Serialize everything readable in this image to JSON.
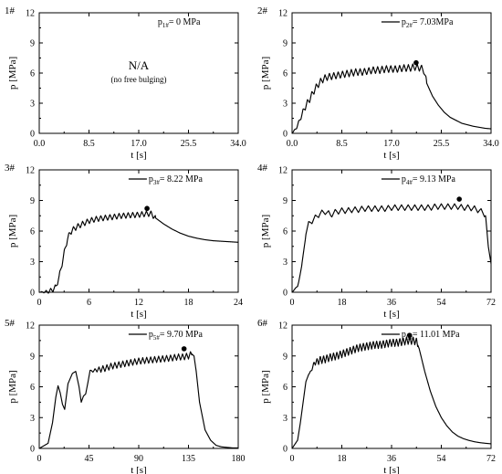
{
  "chart_data": [
    {
      "type": "line",
      "panel_label": "1#",
      "xlabel": "t [s]",
      "ylabel": "p [MPa]",
      "xlim": [
        0,
        34
      ],
      "ylim": [
        0,
        12
      ],
      "xticks": [
        "0.0",
        "8.5",
        "17.0",
        "25.5",
        "34.0"
      ],
      "yticks": [
        "0",
        "3",
        "6",
        "9",
        "12"
      ],
      "legend": {
        "symbol": "p",
        "sub": "1#",
        "value": "= 0 MPa",
        "line": false
      },
      "na_text": "N/A",
      "na_note": "(no free bulging)",
      "series": [],
      "peak": null
    },
    {
      "type": "line",
      "panel_label": "2#",
      "xlabel": "t [s]",
      "ylabel": "p [MPa]",
      "xlim": [
        0,
        34
      ],
      "ylim": [
        0,
        12
      ],
      "xticks": [
        "0.0",
        "8.5",
        "17.0",
        "25.5",
        "34.0"
      ],
      "yticks": [
        "0",
        "3",
        "6",
        "9",
        "12"
      ],
      "legend": {
        "symbol": "p",
        "sub": "2#",
        "value": "= 7.03MPa",
        "line": true
      },
      "series": [
        {
          "x": [
            0,
            0.8,
            1.5,
            2.2,
            3,
            3.8,
            4.5,
            5.3,
            6,
            7,
            8,
            9,
            10,
            11,
            12,
            13,
            14,
            15,
            16,
            17,
            18,
            19,
            20,
            21,
            22,
            22.5,
            23,
            24,
            25,
            26,
            27,
            28,
            29,
            30,
            31,
            32,
            33,
            34
          ],
          "y": [
            0,
            0.6,
            1.6,
            2.6,
            3.4,
            4.3,
            4.9,
            5.4,
            5.6,
            5.7,
            5.8,
            5.9,
            6.0,
            6.1,
            6.1,
            6.2,
            6.3,
            6.3,
            6.4,
            6.4,
            6.4,
            6.5,
            6.5,
            6.6,
            6.5,
            6.3,
            5.0,
            3.7,
            2.8,
            2.1,
            1.6,
            1.3,
            1.0,
            0.85,
            0.7,
            0.6,
            0.5,
            0.45
          ],
          "osc_end": 23,
          "osc_amp": 0.7,
          "osc_period": 0.75
        }
      ],
      "peak": {
        "x": 21.2,
        "y": 7.03
      }
    },
    {
      "type": "line",
      "panel_label": "3#",
      "xlabel": "t [s]",
      "ylabel": "p [MPa]",
      "xlim": [
        0,
        24
      ],
      "ylim": [
        0,
        12
      ],
      "xticks": [
        "0",
        "6",
        "12",
        "18",
        "24"
      ],
      "yticks": [
        "0",
        "3",
        "6",
        "9",
        "12"
      ],
      "legend": {
        "symbol": "p",
        "sub": "3#",
        "value": "= 8.22 MPa",
        "line": true
      },
      "series": [
        {
          "x": [
            0,
            1,
            1.5,
            2,
            2.4,
            2.8,
            3.1,
            3.4,
            3.7,
            4,
            4.5,
            5,
            5.5,
            6,
            7,
            8,
            9,
            10,
            11,
            12,
            13,
            13.5,
            14,
            15,
            16,
            17,
            18,
            19,
            20,
            21,
            22,
            23,
            24
          ],
          "y": [
            0,
            0.05,
            0.2,
            0.5,
            1.5,
            3.0,
            4.2,
            5.2,
            5.8,
            6.1,
            6.4,
            6.6,
            6.8,
            7.0,
            7.2,
            7.3,
            7.4,
            7.5,
            7.55,
            7.6,
            7.7,
            7.7,
            7.3,
            6.7,
            6.2,
            5.8,
            5.5,
            5.3,
            5.15,
            5.05,
            5.0,
            4.95,
            4.9
          ],
          "osc_end": 14,
          "osc_amp": 0.55,
          "osc_period": 0.55
        }
      ],
      "peak": {
        "x": 13.0,
        "y": 8.22
      }
    },
    {
      "type": "line",
      "panel_label": "4#",
      "xlabel": "t [s]",
      "ylabel": "p [MPa]",
      "xlim": [
        0,
        72
      ],
      "ylim": [
        0,
        12
      ],
      "xticks": [
        "0",
        "18",
        "36",
        "54",
        "72"
      ],
      "yticks": [
        "0",
        "3",
        "6",
        "9",
        "12"
      ],
      "legend": {
        "symbol": "p",
        "sub": "4#",
        "value": "= 9.13 MPa",
        "line": true
      },
      "series": [
        {
          "x": [
            0,
            2,
            3.5,
            5,
            6,
            8,
            10,
            12,
            14,
            16,
            18,
            20,
            22,
            24,
            26,
            28,
            30,
            32,
            34,
            36,
            38,
            40,
            42,
            44,
            46,
            48,
            50,
            52,
            54,
            56,
            58,
            60,
            62,
            64,
            66,
            68,
            70,
            71,
            72
          ],
          "y": [
            0,
            0.6,
            2.5,
            5.8,
            6.7,
            7.2,
            7.7,
            7.9,
            7.6,
            7.9,
            8.0,
            8.0,
            8.1,
            8.1,
            8.2,
            8.2,
            8.2,
            8.2,
            8.2,
            8.3,
            8.3,
            8.3,
            8.3,
            8.3,
            8.3,
            8.3,
            8.3,
            8.4,
            8.4,
            8.4,
            8.4,
            8.4,
            8.3,
            8.3,
            8.2,
            8.0,
            7.6,
            4.5,
            2.8
          ],
          "osc_end": 70,
          "osc_amp": 0.55,
          "osc_period": 2.4
        }
      ],
      "peak": {
        "x": 60.5,
        "y": 9.13
      }
    },
    {
      "type": "line",
      "panel_label": "5#",
      "xlabel": "t [s]",
      "ylabel": "p [MPa]",
      "xlim": [
        0,
        180
      ],
      "ylim": [
        0,
        12
      ],
      "xticks": [
        "0",
        "45",
        "90",
        "135",
        "180"
      ],
      "yticks": [
        "0",
        "3",
        "6",
        "9",
        "12"
      ],
      "legend": {
        "symbol": "p",
        "sub": "5#",
        "value": "= 9.70 MPa",
        "line": true
      },
      "series": [
        {
          "x": [
            0,
            8,
            12,
            15,
            17,
            19,
            21,
            23,
            26,
            30,
            33,
            36,
            38,
            40,
            42,
            44,
            46,
            48,
            50,
            55,
            60,
            65,
            70,
            80,
            90,
            100,
            110,
            120,
            125,
            130,
            135,
            138,
            140,
            142,
            145,
            150,
            155,
            160,
            165,
            170,
            175,
            180
          ],
          "y": [
            0,
            0.5,
            2.5,
            5.0,
            6.1,
            5.4,
            4.3,
            3.8,
            6.3,
            7.3,
            7.5,
            6.0,
            4.5,
            5.1,
            5.3,
            6.4,
            7.6,
            7.5,
            7.6,
            7.7,
            7.8,
            8.0,
            8.1,
            8.3,
            8.5,
            8.6,
            8.7,
            8.8,
            8.9,
            8.9,
            9.0,
            9.2,
            9.0,
            7.5,
            4.5,
            1.8,
            0.8,
            0.3,
            0.15,
            0.1,
            0.05,
            0.05
          ],
          "osc_start": 45,
          "osc_end": 138,
          "osc_amp": 0.6,
          "osc_period": 3.6
        }
      ],
      "peak": {
        "x": 131,
        "y": 9.7
      }
    },
    {
      "type": "line",
      "panel_label": "6#",
      "xlabel": "t [s]",
      "ylabel": "p [MPa]",
      "xlim": [
        0,
        72
      ],
      "ylim": [
        0,
        12
      ],
      "xticks": [
        "0",
        "18",
        "36",
        "54",
        "72"
      ],
      "yticks": [
        "0",
        "3",
        "6",
        "9",
        "12"
      ],
      "legend": {
        "symbol": "p",
        "sub": "6#",
        "value": "= 11.01 MPa",
        "line": true
      },
      "series": [
        {
          "x": [
            0,
            2,
            3,
            4,
            5,
            6,
            7,
            8,
            10,
            12,
            14,
            16,
            18,
            20,
            22,
            24,
            26,
            28,
            30,
            32,
            34,
            36,
            38,
            40,
            42,
            44,
            45,
            46,
            48,
            50,
            52,
            54,
            56,
            58,
            60,
            62,
            64,
            66,
            68,
            70,
            72
          ],
          "y": [
            0,
            0.8,
            2.5,
            4.5,
            6.5,
            7.2,
            7.6,
            8.3,
            8.6,
            8.7,
            8.9,
            9.0,
            9.2,
            9.4,
            9.6,
            9.8,
            9.9,
            10.0,
            10.1,
            10.1,
            10.2,
            10.3,
            10.3,
            10.4,
            10.5,
            10.5,
            10.4,
            9.7,
            7.5,
            5.6,
            4.1,
            3.0,
            2.2,
            1.6,
            1.2,
            0.95,
            0.78,
            0.65,
            0.56,
            0.5,
            0.45
          ],
          "osc_start": 6,
          "osc_end": 45.5,
          "osc_amp": 0.75,
          "osc_period": 1.2
        }
      ],
      "peak": {
        "x": 42.5,
        "y": 11.01
      }
    }
  ]
}
